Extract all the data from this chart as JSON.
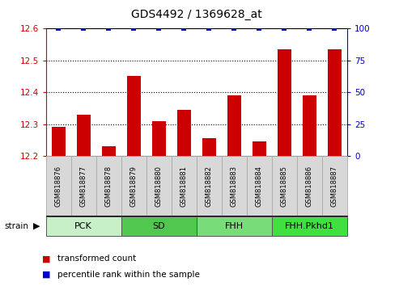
{
  "title": "GDS4492 / 1369628_at",
  "samples": [
    "GSM818876",
    "GSM818877",
    "GSM818878",
    "GSM818879",
    "GSM818880",
    "GSM818881",
    "GSM818882",
    "GSM818883",
    "GSM818884",
    "GSM818885",
    "GSM818886",
    "GSM818887"
  ],
  "red_values": [
    12.29,
    12.33,
    12.23,
    12.45,
    12.31,
    12.345,
    12.255,
    12.39,
    12.245,
    12.535,
    12.39,
    12.535
  ],
  "blue_values": [
    100,
    100,
    100,
    100,
    100,
    100,
    100,
    100,
    100,
    100,
    100,
    100
  ],
  "ylim_left": [
    12.2,
    12.6
  ],
  "ylim_right": [
    0,
    100
  ],
  "yticks_left": [
    12.2,
    12.3,
    12.4,
    12.5,
    12.6
  ],
  "yticks_right": [
    0,
    25,
    50,
    75,
    100
  ],
  "grid_lines": [
    12.3,
    12.4,
    12.5
  ],
  "groups": [
    {
      "label": "PCK",
      "start": 0,
      "end": 3,
      "color": "#c8f0c8"
    },
    {
      "label": "SD",
      "start": 3,
      "end": 6,
      "color": "#50c850"
    },
    {
      "label": "FHH",
      "start": 6,
      "end": 9,
      "color": "#78dc78"
    },
    {
      "label": "FHH.Pkhd1",
      "start": 9,
      "end": 12,
      "color": "#40e040"
    }
  ],
  "strain_label": "strain",
  "red_color": "#cc0000",
  "blue_color": "#0000cc",
  "bar_width": 0.55,
  "background_color": "#ffffff",
  "tick_bg_color": "#d8d8d8",
  "tick_border_color": "#aaaaaa",
  "spine_color": "#000000"
}
